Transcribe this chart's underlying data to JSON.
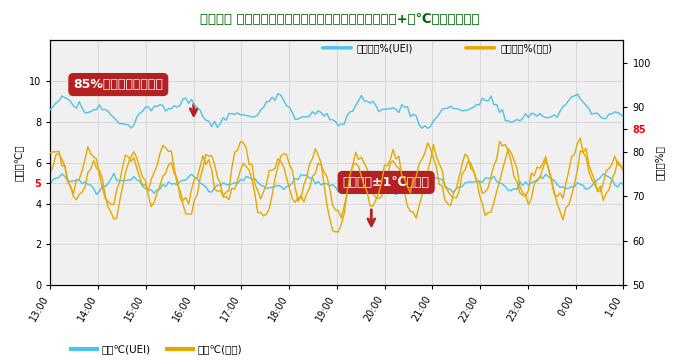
{
  "title": "ウルトラ エコ・アイスシステムと直膨方式の冷蔵庫（+５℃）温湿度比較",
  "title_color": "#006400",
  "xlabel_ticks": [
    "13:00",
    "14:00",
    "15:00",
    "16:00",
    "17:00",
    "18:00",
    "19:00",
    "20:00",
    "21:00",
    "22:00",
    "23:00",
    "0:00",
    "1:00"
  ],
  "ylabel_left": "温度【℃】",
  "ylabel_right": "湿度【%】",
  "temp_ylim": [
    0,
    12
  ],
  "temp_yticks": [
    0,
    2,
    4,
    5,
    6,
    8,
    10
  ],
  "hum_ylim": [
    50,
    105
  ],
  "hum_yticks": [
    50,
    60,
    70,
    80,
    85,
    90,
    100
  ],
  "color_uei": "#4dc3e8",
  "color_choku": "#e6a800",
  "annotation1_text": "85%以上の湿度を実現",
  "annotation2_text": "設定温度±1℃を保持",
  "legend_top_uei": "相対湿度%(UEI)",
  "legend_top_choku": "相対湿度%(直膨)",
  "legend_bot_uei": "温度℃(UEI)",
  "legend_bot_choku": "温度℃(直膨)",
  "bg_color": "#ffffff",
  "plot_bg": "#f0f0f0",
  "grid_color": "#d0d0d0",
  "ann_bg": "#b52020"
}
